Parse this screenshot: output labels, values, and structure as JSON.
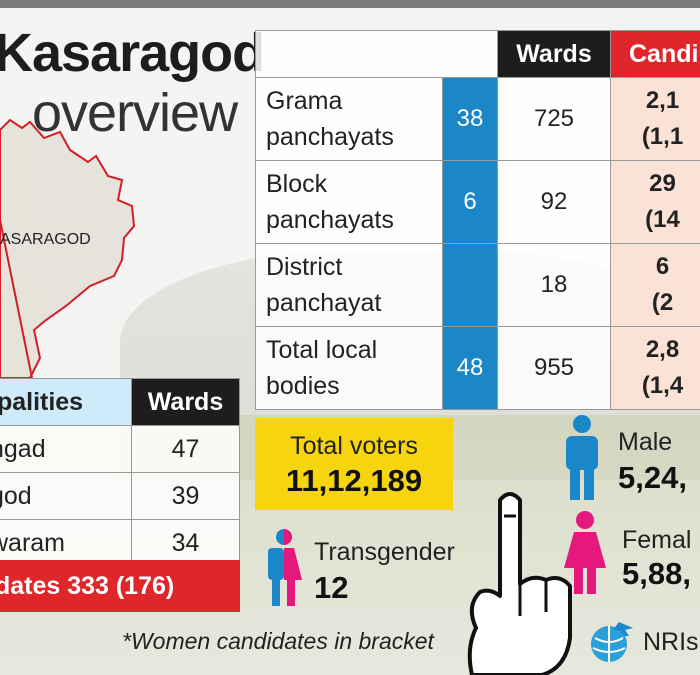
{
  "title": {
    "line1": "Kasaragod",
    "line2": "overview"
  },
  "map": {
    "label": "ASARAGOD",
    "fill": "#e6e3dc",
    "border": "#d21f26"
  },
  "panchayat_table": {
    "headers": {
      "wards": "Wards",
      "candidates": "Candi"
    },
    "rows": [
      {
        "name_line1": "Grama",
        "name_line2": "panchayats",
        "count": "38",
        "wards": "725",
        "candidates_line1": "2,1",
        "candidates_line2": "(1,1"
      },
      {
        "name_line1": "Block",
        "name_line2": "panchayats",
        "count": "6",
        "wards": "92",
        "candidates_line1": "29",
        "candidates_line2": "(14"
      },
      {
        "name_line1": "District",
        "name_line2": "panchayat",
        "count": "",
        "wards": "18",
        "candidates_line1": "6",
        "candidates_line2": "(2"
      },
      {
        "name_line1": "Total local",
        "name_line2": "bodies",
        "count": "48",
        "wards": "955",
        "candidates_line1": "2,8",
        "candidates_line2": "(1,4"
      }
    ]
  },
  "municipality_table": {
    "headers": {
      "name": "ipalities",
      "wards": "Wards"
    },
    "rows": [
      {
        "name": "ngad",
        "wards": "47"
      },
      {
        "name": "god",
        "wards": "39"
      },
      {
        "name": "waram",
        "wards": "34"
      }
    ],
    "footer": "idates 333 (176)"
  },
  "voters": {
    "label": "Total voters",
    "value": "11,12,189"
  },
  "male": {
    "label": "Male",
    "value": "5,24,"
  },
  "female": {
    "label": "Femal",
    "value": "5,88,"
  },
  "transgender": {
    "label": "Transgender",
    "value": "12"
  },
  "note": "*Women candidates in bracket",
  "nri": {
    "label": "NRIs"
  },
  "colors": {
    "blue": "#1b86c8",
    "red": "#e0262b",
    "yellow": "#f6d50f",
    "pink": "#e5197d",
    "dark": "#1d1d1d"
  }
}
